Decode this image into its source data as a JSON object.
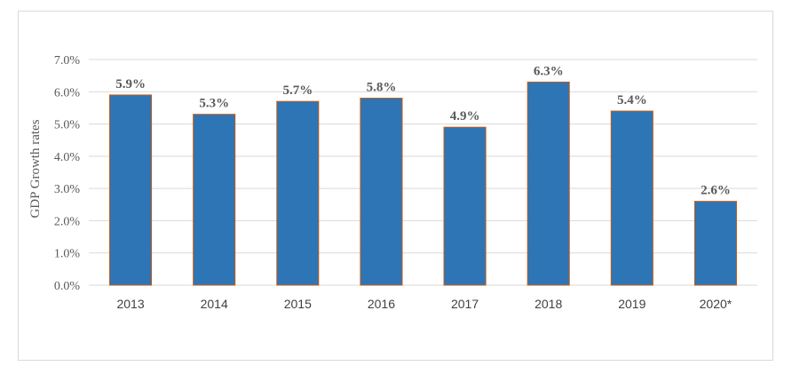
{
  "chart_data": {
    "type": "bar",
    "title": "",
    "xlabel": "",
    "ylabel": "GDP Growth rates",
    "categories": [
      "2013",
      "2014",
      "2015",
      "2016",
      "2017",
      "2018",
      "2019",
      "2020*"
    ],
    "values": [
      5.9,
      5.3,
      5.7,
      5.8,
      4.9,
      6.3,
      5.4,
      2.6
    ],
    "data_labels": [
      "5.9%",
      "5.3%",
      "5.7%",
      "5.8%",
      "4.9%",
      "6.3%",
      "5.4%",
      "2.6%"
    ],
    "ylim": [
      0,
      7
    ],
    "yticks": [
      0,
      1,
      2,
      3,
      4,
      5,
      6,
      7
    ],
    "ytick_labels": [
      "0.0%",
      "1.0%",
      "2.0%",
      "3.0%",
      "4.0%",
      "5.0%",
      "6.0%",
      "7.0%"
    ],
    "grid": true,
    "legend": "none",
    "colors": {
      "bar_fill": "#2e75b6",
      "bar_stroke": "#c55a11",
      "gridline": "#d9d9d9"
    }
  }
}
